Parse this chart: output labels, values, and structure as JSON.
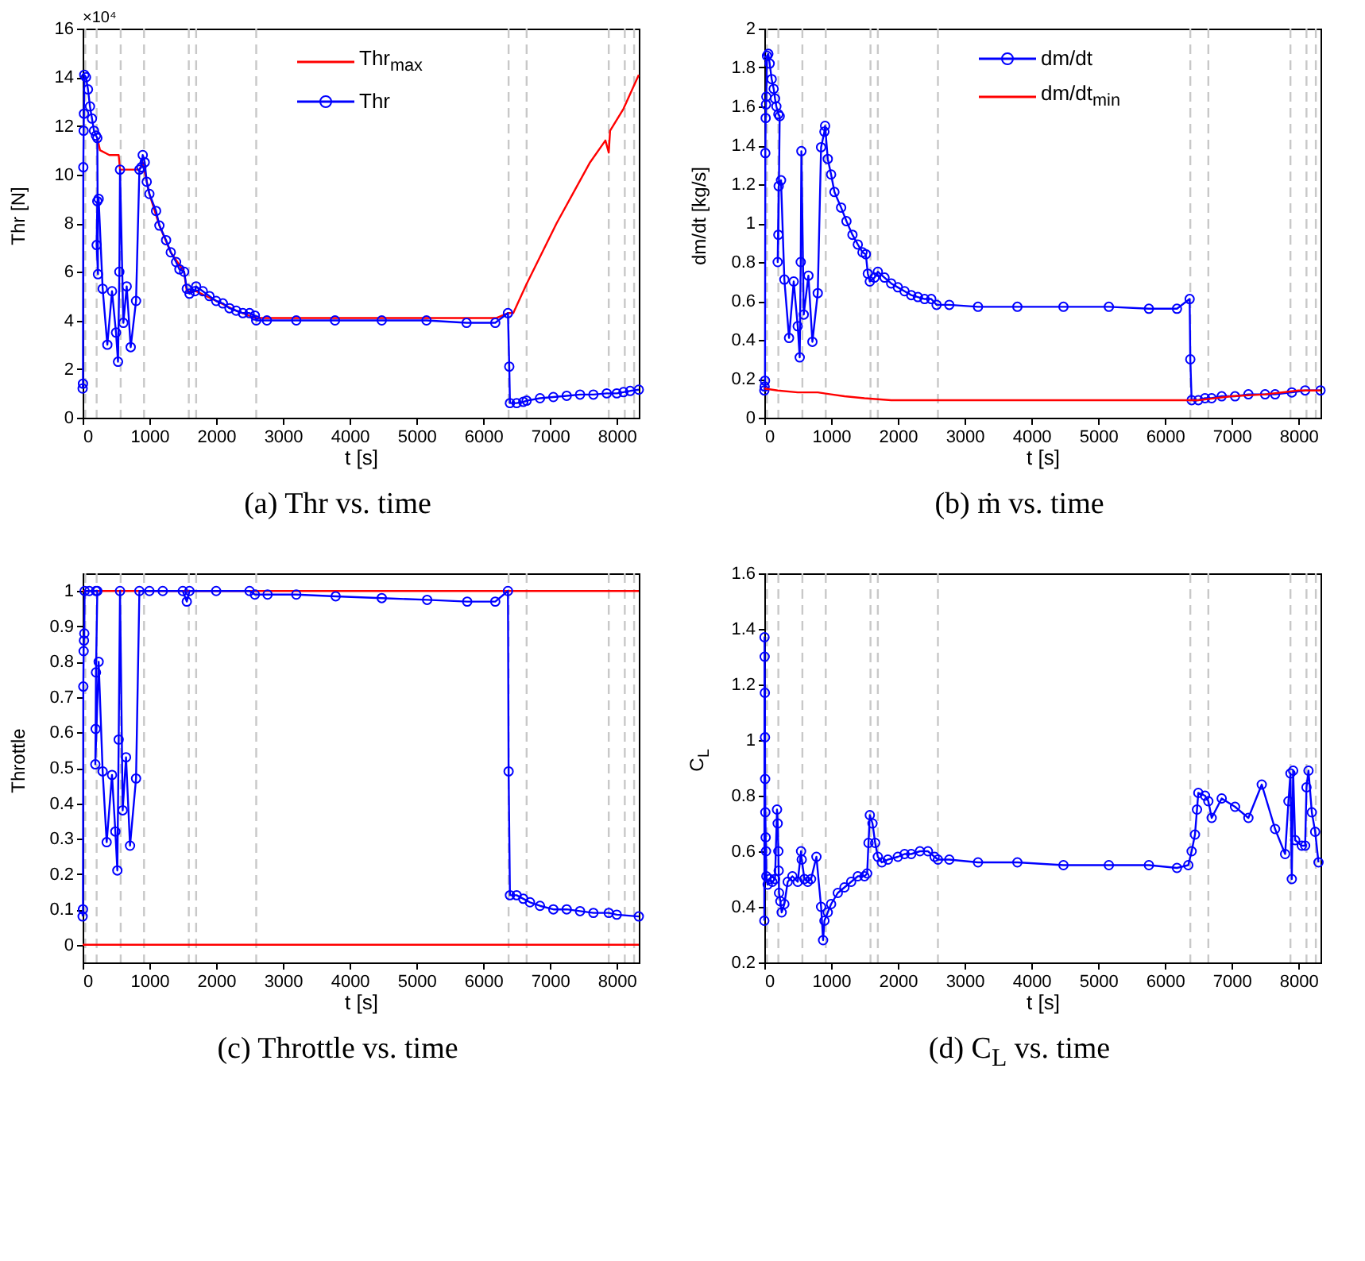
{
  "chart_data": [
    {
      "type": "line",
      "title": "(a) Thr vs. time",
      "xlabel": "t [s]",
      "ylabel": "Thr [N]",
      "annotations": [
        "×10⁴"
      ],
      "marker": "circle",
      "legend": "top",
      "grid": false,
      "xlim": [
        0,
        8330
      ],
      "xticks": [
        0,
        1000,
        2000,
        3000,
        4000,
        5000,
        6000,
        7000,
        8000
      ],
      "ylim": [
        0,
        16
      ],
      "yticks": [
        0,
        2,
        4,
        6,
        8,
        10,
        12,
        14,
        16
      ],
      "ref_lines": [
        {
          "axis": "x",
          "value": 40,
          "color": "#c8c8c8",
          "line_style": "dashed"
        },
        {
          "axis": "x",
          "value": 210,
          "color": "#c8c8c8",
          "line_style": "dashed"
        },
        {
          "axis": "x",
          "value": 570,
          "color": "#c8c8c8",
          "line_style": "dashed"
        },
        {
          "axis": "x",
          "value": 920,
          "color": "#c8c8c8",
          "line_style": "dashed"
        },
        {
          "axis": "x",
          "value": 1590,
          "color": "#c8c8c8",
          "line_style": "dashed"
        },
        {
          "axis": "x",
          "value": 1700,
          "color": "#c8c8c8",
          "line_style": "dashed"
        },
        {
          "axis": "x",
          "value": 2600,
          "color": "#c8c8c8",
          "line_style": "dashed"
        },
        {
          "axis": "x",
          "value": 6380,
          "color": "#c8c8c8",
          "line_style": "dashed"
        },
        {
          "axis": "x",
          "value": 6650,
          "color": "#c8c8c8",
          "line_style": "dashed"
        },
        {
          "axis": "x",
          "value": 7880,
          "color": "#c8c8c8",
          "line_style": "dashed"
        },
        {
          "axis": "x",
          "value": 8120,
          "color": "#c8c8c8",
          "line_style": "dashed"
        },
        {
          "axis": "x",
          "value": 8260,
          "color": "#c8c8c8",
          "line_style": "dashed"
        }
      ],
      "series": [
        {
          "name": "Thr$_{max}$",
          "color": "#ff0000",
          "marker": "none",
          "x": [
            220,
            260,
            400,
            540,
            560,
            850,
            900,
            1000,
            1150,
            1320,
            1520,
            1560,
            1700,
            2000,
            2300,
            2580,
            6200,
            6370,
            6450,
            6650,
            7100,
            7600,
            7830,
            7880,
            7900,
            8100,
            8330
          ],
          "values": [
            11.5,
            11.0,
            10.8,
            10.8,
            10.2,
            10.2,
            10.5,
            9.2,
            7.9,
            6.8,
            6.0,
            5.2,
            5.2,
            4.8,
            4.4,
            4.1,
            4.1,
            4.3,
            4.3,
            5.5,
            8.0,
            10.5,
            11.4,
            10.9,
            11.8,
            12.7,
            14.1
          ]
        },
        {
          "name": "Thr",
          "color": "#0000ff",
          "x": [
            0,
            5,
            10,
            15,
            20,
            25,
            50,
            80,
            110,
            140,
            170,
            200,
            220,
            230,
            210,
            220,
            240,
            300,
            370,
            440,
            500,
            530,
            550,
            560,
            610,
            660,
            720,
            800,
            850,
            880,
            900,
            930,
            960,
            1000,
            1100,
            1150,
            1250,
            1320,
            1400,
            1450,
            1520,
            1560,
            1600,
            1680,
            1700,
            1800,
            1900,
            2000,
            2100,
            2200,
            2300,
            2400,
            2500,
            2580,
            2600,
            2760,
            3200,
            3780,
            4480,
            5150,
            5750,
            6180,
            6370,
            6390,
            6400,
            6500,
            6600,
            6650,
            6850,
            7050,
            7250,
            7450,
            7650,
            7850,
            8000,
            8100,
            8200,
            8330
          ],
          "values": [
            1.2,
            1.4,
            10.3,
            11.8,
            12.5,
            14.1,
            14.0,
            13.5,
            12.8,
            12.3,
            11.8,
            11.6,
            11.5,
            5.9,
            7.1,
            8.9,
            9.0,
            5.3,
            3.0,
            5.2,
            3.5,
            2.3,
            6.0,
            10.2,
            3.9,
            5.4,
            2.9,
            4.8,
            10.2,
            10.3,
            10.8,
            10.5,
            9.7,
            9.2,
            8.5,
            7.9,
            7.3,
            6.8,
            6.4,
            6.1,
            6.0,
            5.3,
            5.1,
            5.2,
            5.4,
            5.2,
            5.0,
            4.8,
            4.7,
            4.5,
            4.4,
            4.3,
            4.3,
            4.2,
            4.0,
            4.0,
            4.0,
            4.0,
            4.0,
            4.0,
            3.9,
            3.9,
            4.3,
            2.1,
            0.6,
            0.6,
            0.65,
            0.7,
            0.8,
            0.85,
            0.9,
            0.95,
            0.95,
            1.0,
            1.0,
            1.05,
            1.1,
            1.15
          ]
        }
      ]
    },
    {
      "type": "line",
      "title": "(b) ṁ vs. time",
      "xlabel": "t [s]",
      "ylabel": "dm/dt [kg/s]",
      "marker": "circle",
      "legend": "top",
      "grid": false,
      "xlim": [
        0,
        8330
      ],
      "xticks": [
        0,
        1000,
        2000,
        3000,
        4000,
        5000,
        6000,
        7000,
        8000
      ],
      "ylim": [
        0,
        2
      ],
      "yticks": [
        0,
        0.2,
        0.4,
        0.6,
        0.8,
        1,
        1.2,
        1.4,
        1.6,
        1.8,
        2
      ],
      "ref_lines": [
        {
          "axis": "x",
          "value": 40,
          "color": "#c8c8c8",
          "line_style": "dashed"
        },
        {
          "axis": "x",
          "value": 210,
          "color": "#c8c8c8",
          "line_style": "dashed"
        },
        {
          "axis": "x",
          "value": 570,
          "color": "#c8c8c8",
          "line_style": "dashed"
        },
        {
          "axis": "x",
          "value": 920,
          "color": "#c8c8c8",
          "line_style": "dashed"
        },
        {
          "axis": "x",
          "value": 1590,
          "color": "#c8c8c8",
          "line_style": "dashed"
        },
        {
          "axis": "x",
          "value": 1700,
          "color": "#c8c8c8",
          "line_style": "dashed"
        },
        {
          "axis": "x",
          "value": 2600,
          "color": "#c8c8c8",
          "line_style": "dashed"
        },
        {
          "axis": "x",
          "value": 6380,
          "color": "#c8c8c8",
          "line_style": "dashed"
        },
        {
          "axis": "x",
          "value": 6650,
          "color": "#c8c8c8",
          "line_style": "dashed"
        },
        {
          "axis": "x",
          "value": 7880,
          "color": "#c8c8c8",
          "line_style": "dashed"
        },
        {
          "axis": "x",
          "value": 8120,
          "color": "#c8c8c8",
          "line_style": "dashed"
        },
        {
          "axis": "x",
          "value": 8260,
          "color": "#c8c8c8",
          "line_style": "dashed"
        }
      ],
      "series": [
        {
          "name": "dm/dt",
          "color": "#0000ff",
          "x": [
            0,
            5,
            10,
            15,
            20,
            25,
            30,
            40,
            60,
            80,
            110,
            140,
            160,
            180,
            210,
            230,
            210,
            200,
            215,
            250,
            300,
            370,
            440,
            500,
            530,
            545,
            555,
            590,
            660,
            720,
            800,
            850,
            900,
            910,
            950,
            1000,
            1050,
            1150,
            1230,
            1320,
            1400,
            1470,
            1520,
            1550,
            1580,
            1650,
            1700,
            1800,
            1900,
            2000,
            2100,
            2200,
            2300,
            2400,
            2500,
            2580,
            2770,
            3200,
            3790,
            4480,
            5160,
            5760,
            6180,
            6370,
            6380,
            6400,
            6500,
            6600,
            6700,
            6850,
            7050,
            7250,
            7500,
            7650,
            7900,
            8100,
            8330
          ],
          "values": [
            0.14,
            0.16,
            0.19,
            1.36,
            1.54,
            1.61,
            1.65,
            1.86,
            1.87,
            1.82,
            1.74,
            1.69,
            1.64,
            1.6,
            1.56,
            1.55,
            0.94,
            0.8,
            1.19,
            1.22,
            0.71,
            0.41,
            0.7,
            0.47,
            0.31,
            0.8,
            1.37,
            0.53,
            0.73,
            0.39,
            0.64,
            1.39,
            1.47,
            1.5,
            1.33,
            1.25,
            1.16,
            1.08,
            1.01,
            0.94,
            0.89,
            0.85,
            0.84,
            0.74,
            0.7,
            0.72,
            0.75,
            0.72,
            0.69,
            0.67,
            0.65,
            0.63,
            0.62,
            0.61,
            0.61,
            0.58,
            0.58,
            0.57,
            0.57,
            0.57,
            0.57,
            0.56,
            0.56,
            0.61,
            0.3,
            0.09,
            0.09,
            0.1,
            0.1,
            0.11,
            0.11,
            0.12,
            0.12,
            0.12,
            0.13,
            0.14,
            0.14
          ]
        },
        {
          "name": "dm/dt$_{min}$",
          "color": "#ff0000",
          "marker": "none",
          "x": [
            0,
            200,
            500,
            800,
            1000,
            1200,
            1500,
            1900,
            6370,
            6500,
            7000,
            7500,
            8000,
            8330
          ],
          "values": [
            0.15,
            0.14,
            0.13,
            0.13,
            0.12,
            0.11,
            0.1,
            0.09,
            0.09,
            0.09,
            0.11,
            0.12,
            0.14,
            0.14
          ]
        }
      ]
    },
    {
      "type": "line",
      "title": "(c) Throttle vs. time",
      "xlabel": "t [s]",
      "ylabel": "Throttle",
      "marker": "circle",
      "grid": false,
      "xlim": [
        0,
        8330
      ],
      "xticks": [
        0,
        1000,
        2000,
        3000,
        4000,
        5000,
        6000,
        7000,
        8000
      ],
      "ylim": [
        -0.05,
        1.05
      ],
      "yticks": [
        0,
        0.1,
        0.2,
        0.3,
        0.4,
        0.5,
        0.6,
        0.7,
        0.8,
        0.9,
        1
      ],
      "ref_lines": [
        {
          "axis": "x",
          "value": 40,
          "color": "#c8c8c8",
          "line_style": "dashed"
        },
        {
          "axis": "x",
          "value": 210,
          "color": "#c8c8c8",
          "line_style": "dashed"
        },
        {
          "axis": "x",
          "value": 570,
          "color": "#c8c8c8",
          "line_style": "dashed"
        },
        {
          "axis": "x",
          "value": 920,
          "color": "#c8c8c8",
          "line_style": "dashed"
        },
        {
          "axis": "x",
          "value": 1590,
          "color": "#c8c8c8",
          "line_style": "dashed"
        },
        {
          "axis": "x",
          "value": 1700,
          "color": "#c8c8c8",
          "line_style": "dashed"
        },
        {
          "axis": "x",
          "value": 2600,
          "color": "#c8c8c8",
          "line_style": "dashed"
        },
        {
          "axis": "x",
          "value": 6380,
          "color": "#c8c8c8",
          "line_style": "dashed"
        },
        {
          "axis": "x",
          "value": 6650,
          "color": "#c8c8c8",
          "line_style": "dashed"
        },
        {
          "axis": "x",
          "value": 7880,
          "color": "#c8c8c8",
          "line_style": "dashed"
        },
        {
          "axis": "x",
          "value": 8120,
          "color": "#c8c8c8",
          "line_style": "dashed"
        },
        {
          "axis": "x",
          "value": 8260,
          "color": "#c8c8c8",
          "line_style": "dashed"
        },
        {
          "axis": "y",
          "value": 0,
          "color": "#ff0000",
          "line_style": "solid"
        },
        {
          "axis": "y",
          "value": 1,
          "color": "#ff0000",
          "line_style": "solid"
        }
      ],
      "series": [
        {
          "color": "#0000ff",
          "x": [
            0,
            5,
            10,
            15,
            20,
            25,
            30,
            100,
            200,
            220,
            200,
            195,
            190,
            240,
            300,
            360,
            440,
            490,
            520,
            540,
            560,
            600,
            650,
            710,
            800,
            850,
            1000,
            1200,
            1500,
            1560,
            1600,
            2000,
            2500,
            2580,
            2770,
            3200,
            3790,
            4480,
            5160,
            5760,
            6180,
            6370,
            6380,
            6400,
            6500,
            6600,
            6700,
            6850,
            7050,
            7250,
            7450,
            7650,
            7880,
            8000,
            8330
          ],
          "values": [
            0.08,
            0.1,
            0.73,
            0.83,
            0.86,
            0.88,
            1,
            1,
            1,
            1,
            0.77,
            0.61,
            0.51,
            0.8,
            0.49,
            0.29,
            0.48,
            0.32,
            0.21,
            0.58,
            1,
            0.38,
            0.53,
            0.28,
            0.47,
            1,
            1,
            1,
            1,
            0.97,
            1,
            1,
            1,
            0.99,
            0.99,
            0.99,
            0.985,
            0.98,
            0.975,
            0.97,
            0.97,
            1,
            0.49,
            0.14,
            0.14,
            0.13,
            0.12,
            0.11,
            0.1,
            0.1,
            0.095,
            0.09,
            0.09,
            0.085,
            0.08
          ]
        }
      ]
    },
    {
      "type": "line",
      "title": "(d) C$_{L}$ vs. time",
      "xlabel": "t [s]",
      "ylabel": "C$_{L}$",
      "marker": "circle",
      "grid": false,
      "xlim": [
        0,
        8330
      ],
      "xticks": [
        0,
        1000,
        2000,
        3000,
        4000,
        5000,
        6000,
        7000,
        8000
      ],
      "ylim": [
        0.2,
        1.6
      ],
      "yticks": [
        0.2,
        0.4,
        0.6,
        0.8,
        1,
        1.2,
        1.4,
        1.6
      ],
      "ref_lines": [
        {
          "axis": "x",
          "value": 40,
          "color": "#c8c8c8",
          "line_style": "dashed"
        },
        {
          "axis": "x",
          "value": 210,
          "color": "#c8c8c8",
          "line_style": "dashed"
        },
        {
          "axis": "x",
          "value": 570,
          "color": "#c8c8c8",
          "line_style": "dashed"
        },
        {
          "axis": "x",
          "value": 920,
          "color": "#c8c8c8",
          "line_style": "dashed"
        },
        {
          "axis": "x",
          "value": 1590,
          "color": "#c8c8c8",
          "line_style": "dashed"
        },
        {
          "axis": "x",
          "value": 1700,
          "color": "#c8c8c8",
          "line_style": "dashed"
        },
        {
          "axis": "x",
          "value": 2600,
          "color": "#c8c8c8",
          "line_style": "dashed"
        },
        {
          "axis": "x",
          "value": 6380,
          "color": "#c8c8c8",
          "line_style": "dashed"
        },
        {
          "axis": "x",
          "value": 6650,
          "color": "#c8c8c8",
          "line_style": "dashed"
        },
        {
          "axis": "x",
          "value": 7880,
          "color": "#c8c8c8",
          "line_style": "dashed"
        },
        {
          "axis": "x",
          "value": 8120,
          "color": "#c8c8c8",
          "line_style": "dashed"
        },
        {
          "axis": "x",
          "value": 8260,
          "color": "#c8c8c8",
          "line_style": "dashed"
        }
      ],
      "series": [
        {
          "color": "#0000ff",
          "x": [
            0,
            3,
            5,
            8,
            10,
            12,
            15,
            20,
            25,
            30,
            50,
            80,
            120,
            160,
            190,
            200,
            210,
            215,
            220,
            240,
            260,
            300,
            350,
            420,
            500,
            550,
            560,
            600,
            650,
            700,
            780,
            850,
            880,
            900,
            950,
            1000,
            1100,
            1200,
            1300,
            1400,
            1500,
            1540,
            1560,
            1580,
            1620,
            1660,
            1700,
            1760,
            1850,
            2000,
            2100,
            2200,
            2330,
            2450,
            2550,
            2600,
            2770,
            3200,
            3790,
            4480,
            5160,
            5760,
            6180,
            6350,
            6400,
            6450,
            6480,
            6500,
            6600,
            6650,
            6700,
            6850,
            7050,
            7250,
            7450,
            7650,
            7800,
            7850,
            7880,
            7900,
            7920,
            7950,
            8050,
            8100,
            8120,
            8150,
            8200,
            8250,
            8300
          ],
          "values": [
            0.35,
            1.37,
            1.3,
            1.17,
            1.01,
            0.86,
            0.74,
            0.65,
            0.6,
            0.51,
            0.48,
            0.5,
            0.49,
            0.5,
            0.75,
            0.7,
            0.6,
            0.53,
            0.45,
            0.42,
            0.38,
            0.41,
            0.49,
            0.51,
            0.49,
            0.6,
            0.57,
            0.5,
            0.49,
            0.5,
            0.58,
            0.4,
            0.28,
            0.35,
            0.38,
            0.41,
            0.45,
            0.47,
            0.49,
            0.51,
            0.51,
            0.52,
            0.63,
            0.73,
            0.7,
            0.63,
            0.58,
            0.56,
            0.57,
            0.58,
            0.59,
            0.59,
            0.6,
            0.6,
            0.58,
            0.57,
            0.57,
            0.56,
            0.56,
            0.55,
            0.55,
            0.55,
            0.54,
            0.55,
            0.6,
            0.66,
            0.75,
            0.81,
            0.8,
            0.78,
            0.72,
            0.79,
            0.76,
            0.72,
            0.84,
            0.68,
            0.59,
            0.78,
            0.88,
            0.5,
            0.89,
            0.64,
            0.62,
            0.62,
            0.83,
            0.89,
            0.74,
            0.67,
            0.56
          ]
        }
      ]
    }
  ]
}
